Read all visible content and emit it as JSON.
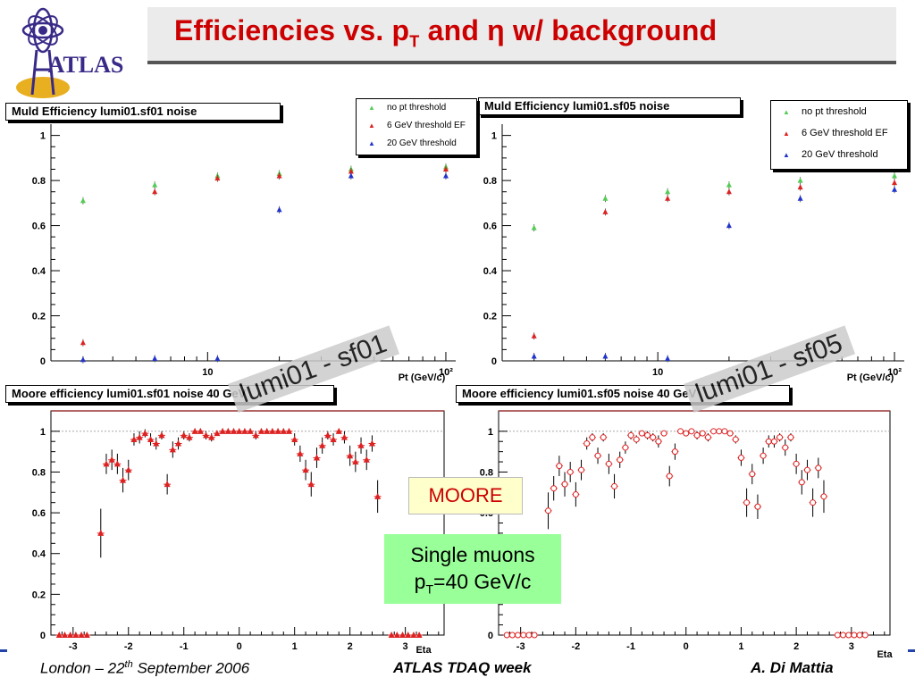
{
  "title": {
    "pre": "Efficiencies vs. p",
    "sub": "T",
    "post": " and η  w/ background"
  },
  "logo_text": "ATLAS",
  "overlays": {
    "stamp_left": "lumi01 - sf01",
    "stamp_right": "lumi01 - sf05",
    "moore": "MOORE",
    "single_line1": "Single muons",
    "single_line2_pre": "p",
    "single_line2_sub": "T",
    "single_line2_post": "=40 GeV/c"
  },
  "footer": {
    "left_pre": "London – 22",
    "left_sup": "th",
    "left_post": " September 2006",
    "middle": "ATLAS TDAQ week",
    "right": "A. Di Mattia"
  },
  "colors": {
    "title": "#cc0000",
    "green": "#55cc55",
    "red": "#dd2222",
    "blue": "#2233cc",
    "stamp": "#cccccc",
    "moore_bg": "#ffffcc",
    "single_bg": "#99ff99"
  },
  "chart_data": [
    {
      "id": "muld-sf01",
      "type": "scatter",
      "title": "Muld Efficiency lumi01.sf01 noise",
      "xlabel": "Pt (GeV/c)",
      "xscale": "log",
      "xlim": [
        2.2,
        110
      ],
      "ylim": [
        0,
        1.05
      ],
      "yticks": [
        0,
        0.2,
        0.4,
        0.6,
        0.8,
        1
      ],
      "yticklabels": [
        "0",
        "0.2",
        "0.4",
        "0.6",
        "0.8",
        "1"
      ],
      "xticks": [
        10,
        100
      ],
      "xticklabels": [
        "10",
        "10²"
      ],
      "legend_position": "top-right",
      "series": [
        {
          "name": "no pt threshold",
          "color": "#55cc55",
          "x": [
            3,
            6,
            11,
            20,
            40,
            100
          ],
          "y": [
            0.71,
            0.78,
            0.82,
            0.83,
            0.85,
            0.86
          ]
        },
        {
          "name": "6 GeV threshold EF",
          "color": "#dd2222",
          "x": [
            3,
            6,
            11,
            20,
            40,
            100
          ],
          "y": [
            0.08,
            0.75,
            0.81,
            0.82,
            0.84,
            0.85
          ]
        },
        {
          "name": "20 GeV threshold",
          "color": "#2233cc",
          "x": [
            3,
            6,
            11,
            20,
            40,
            100
          ],
          "y": [
            0.005,
            0.01,
            0.01,
            0.67,
            0.82,
            0.82
          ]
        }
      ]
    },
    {
      "id": "muld-sf05",
      "type": "scatter",
      "title": "Muld Efficiency lumi01.sf05 noise",
      "xlabel": "Pt (GeV/c)",
      "xscale": "log",
      "xlim": [
        2.2,
        110
      ],
      "ylim": [
        0,
        1.05
      ],
      "yticks": [
        0,
        0.2,
        0.4,
        0.6,
        0.8,
        1
      ],
      "yticklabels": [
        "0",
        "0.2",
        "0.4",
        "0.6",
        "0.8",
        "1"
      ],
      "xticks": [
        10,
        100
      ],
      "xticklabels": [
        "10",
        "10²"
      ],
      "legend_position": "top-right",
      "series": [
        {
          "name": "no pt threshold",
          "color": "#55cc55",
          "x": [
            3,
            6,
            11,
            20,
            40,
            100
          ],
          "y": [
            0.59,
            0.72,
            0.75,
            0.78,
            0.8,
            0.82
          ]
        },
        {
          "name": "6 GeV threshold EF",
          "color": "#dd2222",
          "x": [
            3,
            6,
            11,
            20,
            40,
            100
          ],
          "y": [
            0.11,
            0.66,
            0.72,
            0.75,
            0.77,
            0.79
          ]
        },
        {
          "name": "20 GeV threshold",
          "color": "#2233cc",
          "x": [
            3,
            6,
            11,
            20,
            40,
            100
          ],
          "y": [
            0.02,
            0.02,
            0.01,
            0.6,
            0.72,
            0.76
          ]
        }
      ]
    },
    {
      "id": "moore-sf01",
      "type": "scatter",
      "title": "Moore efficiency lumi01.sf01 noise 40 GeV",
      "xlabel": "Eta",
      "xlim": [
        -3.4,
        3.7
      ],
      "ylim": [
        0,
        1.1
      ],
      "yticks": [
        0,
        0.2,
        0.4,
        0.6,
        0.8,
        1
      ],
      "yticklabels": [
        "0",
        "0.2",
        "0.4",
        "0.6",
        "0.8",
        "1"
      ],
      "xticks": [
        -3,
        -2,
        -1,
        0,
        1,
        2,
        3
      ],
      "xticklabels": [
        "-3",
        "-2",
        "-1",
        "0",
        "1",
        "2",
        "3"
      ],
      "marker": "filled-triangle",
      "color": "#dd2222",
      "x": [
        -3.25,
        -3.15,
        -3.05,
        -2.95,
        -2.85,
        -2.75,
        -2.5,
        -2.4,
        -2.3,
        -2.2,
        -2.1,
        -2.0,
        -1.9,
        -1.8,
        -1.7,
        -1.6,
        -1.5,
        -1.4,
        -1.3,
        -1.2,
        -1.1,
        -1.0,
        -0.9,
        -0.8,
        -0.7,
        -0.6,
        -0.5,
        -0.4,
        -0.3,
        -0.2,
        -0.1,
        0.0,
        0.1,
        0.2,
        0.3,
        0.4,
        0.5,
        0.6,
        0.7,
        0.8,
        0.9,
        1.0,
        1.1,
        1.2,
        1.3,
        1.4,
        1.5,
        1.6,
        1.7,
        1.8,
        1.9,
        2.0,
        2.1,
        2.2,
        2.3,
        2.4,
        2.5,
        2.75,
        2.85,
        2.95,
        3.05,
        3.15,
        3.25
      ],
      "y": [
        0,
        0,
        0,
        0,
        0,
        0,
        0.5,
        0.84,
        0.86,
        0.84,
        0.76,
        0.81,
        0.96,
        0.97,
        0.99,
        0.96,
        0.94,
        0.98,
        0.74,
        0.91,
        0.94,
        0.98,
        0.97,
        1.0,
        1.0,
        0.98,
        0.97,
        0.99,
        1.0,
        1.0,
        1.0,
        1.0,
        1.0,
        1.0,
        0.98,
        1.0,
        1.0,
        1.0,
        1.0,
        1.0,
        1.0,
        0.96,
        0.89,
        0.81,
        0.74,
        0.87,
        0.93,
        0.98,
        0.96,
        1.0,
        0.97,
        0.88,
        0.85,
        0.93,
        0.86,
        0.94,
        0.68,
        0,
        0,
        0,
        0,
        0,
        0
      ],
      "err": [
        0,
        0,
        0,
        0,
        0,
        0,
        0.12,
        0.05,
        0.05,
        0.05,
        0.06,
        0.05,
        0.03,
        0.03,
        0.02,
        0.03,
        0.03,
        0.02,
        0.05,
        0.04,
        0.03,
        0.02,
        0.02,
        0.01,
        0.01,
        0.02,
        0.02,
        0.01,
        0.01,
        0.01,
        0.01,
        0.01,
        0.01,
        0.01,
        0.02,
        0.01,
        0.01,
        0.01,
        0.01,
        0.01,
        0.01,
        0.03,
        0.04,
        0.05,
        0.06,
        0.05,
        0.04,
        0.02,
        0.03,
        0.01,
        0.03,
        0.05,
        0.05,
        0.04,
        0.05,
        0.04,
        0.08,
        0,
        0,
        0,
        0,
        0,
        0
      ]
    },
    {
      "id": "moore-sf05",
      "type": "scatter",
      "title": "Moore efficiency lumi01.sf05 noise 40 GeV",
      "xlabel": "Eta",
      "xlim": [
        -3.4,
        3.7
      ],
      "ylim": [
        0,
        1.1
      ],
      "yticks": [
        0,
        0.2,
        0.4,
        0.6,
        0.8,
        1
      ],
      "yticklabels": [
        "0",
        "0.2",
        "0.4",
        "0.6",
        "0.8",
        "1"
      ],
      "xticks": [
        -3,
        -2,
        -1,
        0,
        1,
        2,
        3
      ],
      "xticklabels": [
        "-3",
        "-2",
        "-1",
        "0",
        "1",
        "2",
        "3"
      ],
      "marker": "open-circle",
      "color": "#dd2222",
      "x": [
        -3.25,
        -3.15,
        -3.05,
        -2.95,
        -2.85,
        -2.75,
        -2.5,
        -2.4,
        -2.3,
        -2.2,
        -2.1,
        -2.0,
        -1.9,
        -1.8,
        -1.7,
        -1.6,
        -1.5,
        -1.4,
        -1.3,
        -1.2,
        -1.1,
        -1.0,
        -0.9,
        -0.8,
        -0.7,
        -0.6,
        -0.5,
        -0.4,
        -0.3,
        -0.2,
        -0.1,
        0.0,
        0.1,
        0.2,
        0.3,
        0.4,
        0.5,
        0.6,
        0.7,
        0.8,
        0.9,
        1.0,
        1.1,
        1.2,
        1.3,
        1.4,
        1.5,
        1.6,
        1.7,
        1.8,
        1.9,
        2.0,
        2.1,
        2.2,
        2.3,
        2.4,
        2.5,
        2.75,
        2.85,
        2.95,
        3.05,
        3.15,
        3.25
      ],
      "y": [
        0,
        0,
        0,
        0,
        0,
        0,
        0.61,
        0.72,
        0.83,
        0.74,
        0.8,
        0.69,
        0.81,
        0.94,
        0.97,
        0.88,
        0.97,
        0.84,
        0.73,
        0.86,
        0.92,
        0.98,
        0.96,
        0.99,
        0.98,
        0.97,
        0.95,
        0.99,
        0.78,
        0.9,
        1.0,
        0.99,
        1.0,
        0.98,
        0.99,
        0.97,
        1.0,
        1.0,
        1.0,
        0.99,
        0.96,
        0.87,
        0.65,
        0.79,
        0.63,
        0.88,
        0.95,
        0.95,
        0.97,
        0.92,
        0.97,
        0.84,
        0.75,
        0.81,
        0.65,
        0.82,
        0.68,
        0,
        0,
        0,
        0,
        0,
        0
      ],
      "err": [
        0,
        0,
        0,
        0,
        0,
        0,
        0.09,
        0.06,
        0.05,
        0.06,
        0.05,
        0.06,
        0.05,
        0.03,
        0.02,
        0.04,
        0.02,
        0.05,
        0.06,
        0.04,
        0.03,
        0.02,
        0.02,
        0.01,
        0.02,
        0.02,
        0.03,
        0.01,
        0.05,
        0.04,
        0.01,
        0.01,
        0.01,
        0.02,
        0.01,
        0.02,
        0.01,
        0.01,
        0.01,
        0.01,
        0.02,
        0.04,
        0.07,
        0.05,
        0.06,
        0.04,
        0.03,
        0.03,
        0.02,
        0.04,
        0.02,
        0.05,
        0.06,
        0.05,
        0.07,
        0.05,
        0.08,
        0,
        0,
        0,
        0,
        0,
        0
      ]
    }
  ]
}
